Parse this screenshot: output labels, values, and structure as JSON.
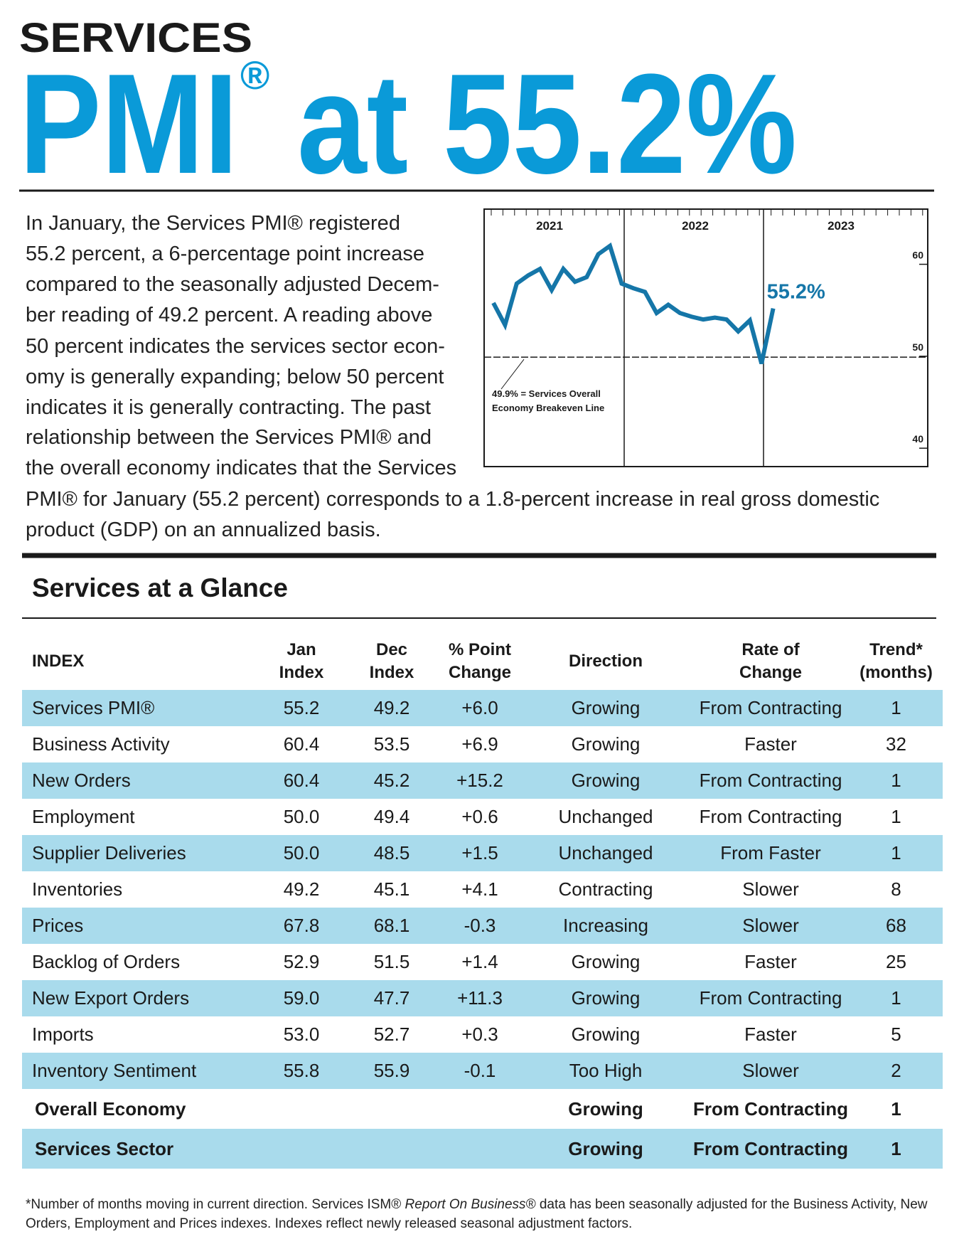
{
  "header": {
    "kicker": "SERVICES",
    "headline_start": "PMI",
    "headline_mark": "®",
    "headline_end": "at 55.2%"
  },
  "intro_lines": [
    "In January, the Services PMI® registered",
    "55.2 percent, a 6-percentage point increase",
    "compared to the seasonally adjusted Decem-",
    "ber reading of 49.2 percent. A reading above",
    "50 percent indicates the services sector econ-",
    "omy is generally expanding; below 50 percent",
    "indicates it is generally contracting. The past",
    "relationship between the Services PMI® and",
    "the overall economy indicates that the Services",
    "PMI® for January (55.2 percent) corresponds to a 1.8-percent increase in real gross domestic",
    "product (GDP) on an annualized basis."
  ],
  "chart_data": {
    "type": "line",
    "year_labels": [
      "2021",
      "2022",
      "2023"
    ],
    "values": [
      55.8,
      53.4,
      57.9,
      58.8,
      59.5,
      57.2,
      59.5,
      58.1,
      58.6,
      61.1,
      62.0,
      57.9,
      57.4,
      57.0,
      54.7,
      55.6,
      54.7,
      54.3,
      54.0,
      54.2,
      54.0,
      52.7,
      53.9,
      49.2,
      55.2
    ],
    "color": "#1576a8",
    "end_label": "55.2%",
    "ylim": [
      38,
      66
    ],
    "yticks": [
      40,
      50,
      60
    ],
    "breakeven": {
      "value": 49.9,
      "label_lines": [
        "49.9% = Services Overall",
        "Economy Breakeven Line"
      ]
    }
  },
  "section_title": "Services at a Glance",
  "table": {
    "header": [
      [
        "INDEX"
      ],
      [
        "Jan",
        "Index"
      ],
      [
        "Dec",
        "Index"
      ],
      [
        "% Point",
        "Change"
      ],
      [
        "Direction"
      ],
      [
        "Rate of",
        "Change"
      ],
      [
        "Trend*",
        "(months)"
      ]
    ],
    "rows": [
      [
        "Services PMI®",
        "55.2",
        "49.2",
        "+6.0",
        "Growing",
        "From Contracting",
        "1"
      ],
      [
        "Business Activity",
        "60.4",
        "53.5",
        "+6.9",
        "Growing",
        "Faster",
        "32"
      ],
      [
        "New Orders",
        "60.4",
        "45.2",
        "+15.2",
        "Growing",
        "From Contracting",
        "1"
      ],
      [
        "Employment",
        "50.0",
        "49.4",
        "+0.6",
        "Unchanged",
        "From Contracting",
        "1"
      ],
      [
        "Supplier Deliveries",
        "50.0",
        "48.5",
        "+1.5",
        "Unchanged",
        "From Faster",
        "1"
      ],
      [
        "Inventories",
        "49.2",
        "45.1",
        "+4.1",
        "Contracting",
        "Slower",
        "8"
      ],
      [
        "Prices",
        "67.8",
        "68.1",
        "-0.3",
        "Increasing",
        "Slower",
        "68"
      ],
      [
        "Backlog of Orders",
        "52.9",
        "51.5",
        "+1.4",
        "Growing",
        "Faster",
        "25"
      ],
      [
        "New Export Orders",
        "59.0",
        "47.7",
        "+11.3",
        "Growing",
        "From Contracting",
        "1"
      ],
      [
        "Imports",
        "53.0",
        "52.7",
        "+0.3",
        "Growing",
        "Faster",
        "5"
      ],
      [
        "Inventory Sentiment",
        "55.8",
        "55.9",
        "-0.1",
        "Too High",
        "Slower",
        "2"
      ]
    ],
    "summary_rows": [
      [
        "Overall Economy",
        "Growing",
        "From Contracting",
        "1"
      ],
      [
        "Services Sector",
        "Growing",
        "From Contracting",
        "1"
      ]
    ]
  },
  "footnote": {
    "before": "*Number of months moving in current direction. Services ISM® ",
    "italic": "Report On Business®",
    "after": " data has been seasonally adjusted for the Business Activity, New Orders, Employment and Prices indexes. Indexes reflect newly released seasonal adjustment factors."
  }
}
